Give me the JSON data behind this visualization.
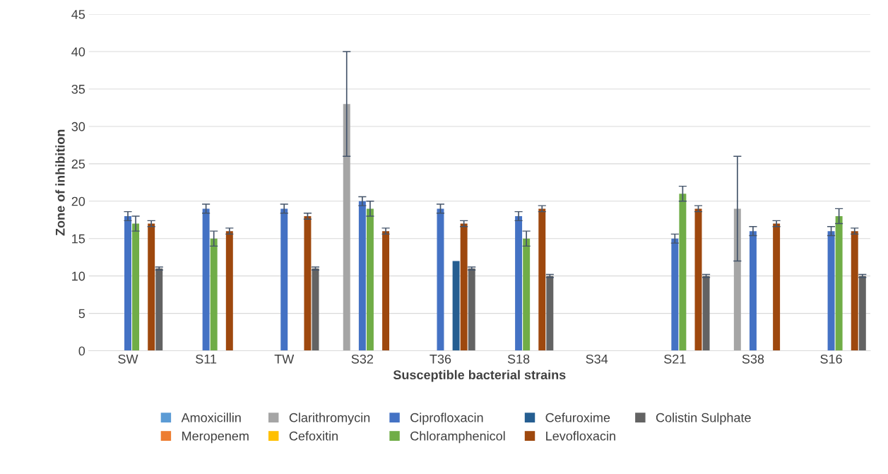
{
  "chart_data": {
    "type": "bar",
    "xlabel": "Susceptible bacterial strains",
    "ylabel": "Zone of inhibition",
    "categories": [
      "SW",
      "S11",
      "TW",
      "S32",
      "T36",
      "S18",
      "S34",
      "S21",
      "S38",
      "S16"
    ],
    "ylim": [
      0,
      45
    ],
    "yticks": [
      0,
      5,
      10,
      15,
      20,
      25,
      30,
      35,
      40,
      45
    ],
    "grid": "y",
    "legend": "bottom",
    "series": [
      {
        "name": "Amoxicillin",
        "color": "#5b9bd5",
        "values": [
          null,
          null,
          null,
          null,
          null,
          null,
          null,
          null,
          null,
          null
        ]
      },
      {
        "name": "Meropenem",
        "color": "#ed7d31",
        "values": [
          null,
          null,
          null,
          null,
          null,
          null,
          null,
          null,
          null,
          null
        ]
      },
      {
        "name": "Clarithromycin",
        "color": "#a5a5a5",
        "values": [
          null,
          null,
          null,
          33,
          null,
          null,
          null,
          null,
          19,
          null
        ],
        "errors": [
          null,
          null,
          null,
          7,
          null,
          null,
          null,
          null,
          7,
          null
        ]
      },
      {
        "name": "Cefoxitin",
        "color": "#ffc000",
        "values": [
          null,
          null,
          null,
          null,
          null,
          null,
          null,
          null,
          null,
          null
        ]
      },
      {
        "name": "Ciprofloxacin",
        "color": "#4472c4",
        "values": [
          18,
          19,
          19,
          20,
          19,
          18,
          null,
          15,
          16,
          16
        ],
        "errors": [
          0.6,
          0.6,
          0.6,
          0.6,
          0.6,
          0.6,
          null,
          0.6,
          0.6,
          0.6
        ]
      },
      {
        "name": "Chloramphenicol",
        "color": "#70ad47",
        "values": [
          17,
          15,
          null,
          19,
          null,
          15,
          null,
          21,
          null,
          18
        ],
        "errors": [
          1,
          1,
          null,
          1,
          null,
          1,
          null,
          1,
          null,
          1
        ]
      },
      {
        "name": "Cefuroxime",
        "color": "#255e91",
        "values": [
          null,
          null,
          null,
          null,
          12,
          null,
          null,
          null,
          null,
          null
        ]
      },
      {
        "name": "Levofloxacin",
        "color": "#9e480e",
        "values": [
          17,
          16,
          18,
          16,
          17,
          19,
          null,
          19,
          17,
          16
        ],
        "errors": [
          0.4,
          0.4,
          0.4,
          0.4,
          0.4,
          0.4,
          null,
          0.4,
          0.4,
          0.4
        ]
      },
      {
        "name": "Colistin Sulphate",
        "color": "#636363",
        "values": [
          11,
          null,
          11,
          null,
          11,
          10,
          null,
          10,
          null,
          10
        ],
        "errors": [
          0.2,
          null,
          0.2,
          null,
          0.2,
          0.2,
          null,
          0.2,
          null,
          0.2
        ]
      }
    ]
  }
}
